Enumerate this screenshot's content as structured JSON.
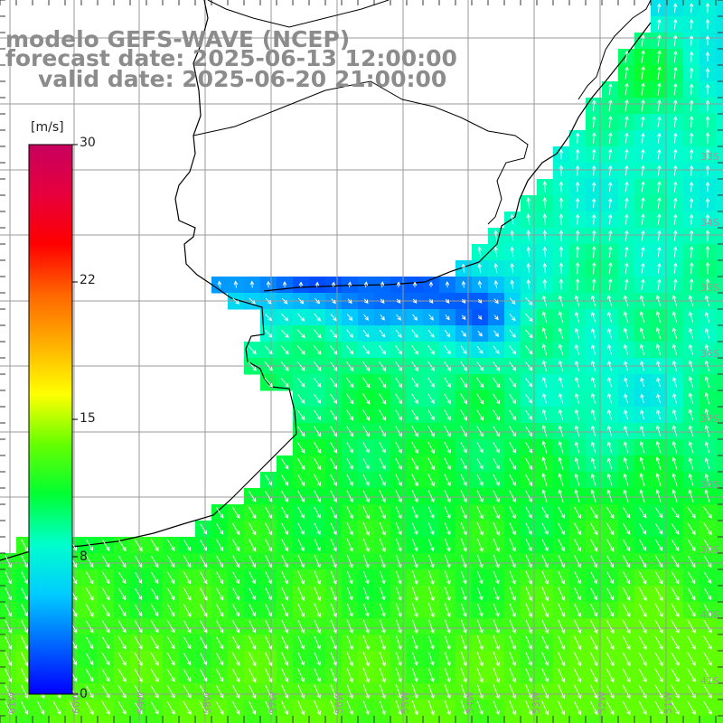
{
  "title": {
    "line1": "modelo GEFS-WAVE (NCEP)",
    "line2": "forecast date: 2025-06-13 12:00:00",
    "line3": "valid date: 2025-06-20 21:00:00"
  },
  "colorbar": {
    "unit": "[m/s]",
    "min": 0,
    "max": 30,
    "ticks": [
      "30",
      "22",
      "15",
      "8",
      "0"
    ],
    "colors": [
      "#0000ff",
      "#0066ff",
      "#00ccff",
      "#00ffcc",
      "#00ff33",
      "#66ff00",
      "#ffff00",
      "#ffb000",
      "#ff6600",
      "#ff0000",
      "#e6003c",
      "#c8005f"
    ]
  },
  "map": {
    "land_color": "#ffffff",
    "grid_color": "#999999",
    "coast_color": "#000000",
    "arrow_color": "#ffffff",
    "longitude_labels": [
      "61W",
      "60W",
      "59W",
      "58W",
      "57W",
      "56W",
      "55W",
      "54W",
      "53W",
      "52W",
      "51W"
    ],
    "latitude_labels": [
      "33S",
      "34S",
      "35S",
      "36S",
      "37S",
      "38S",
      "39S",
      "40S",
      "41S"
    ]
  }
}
